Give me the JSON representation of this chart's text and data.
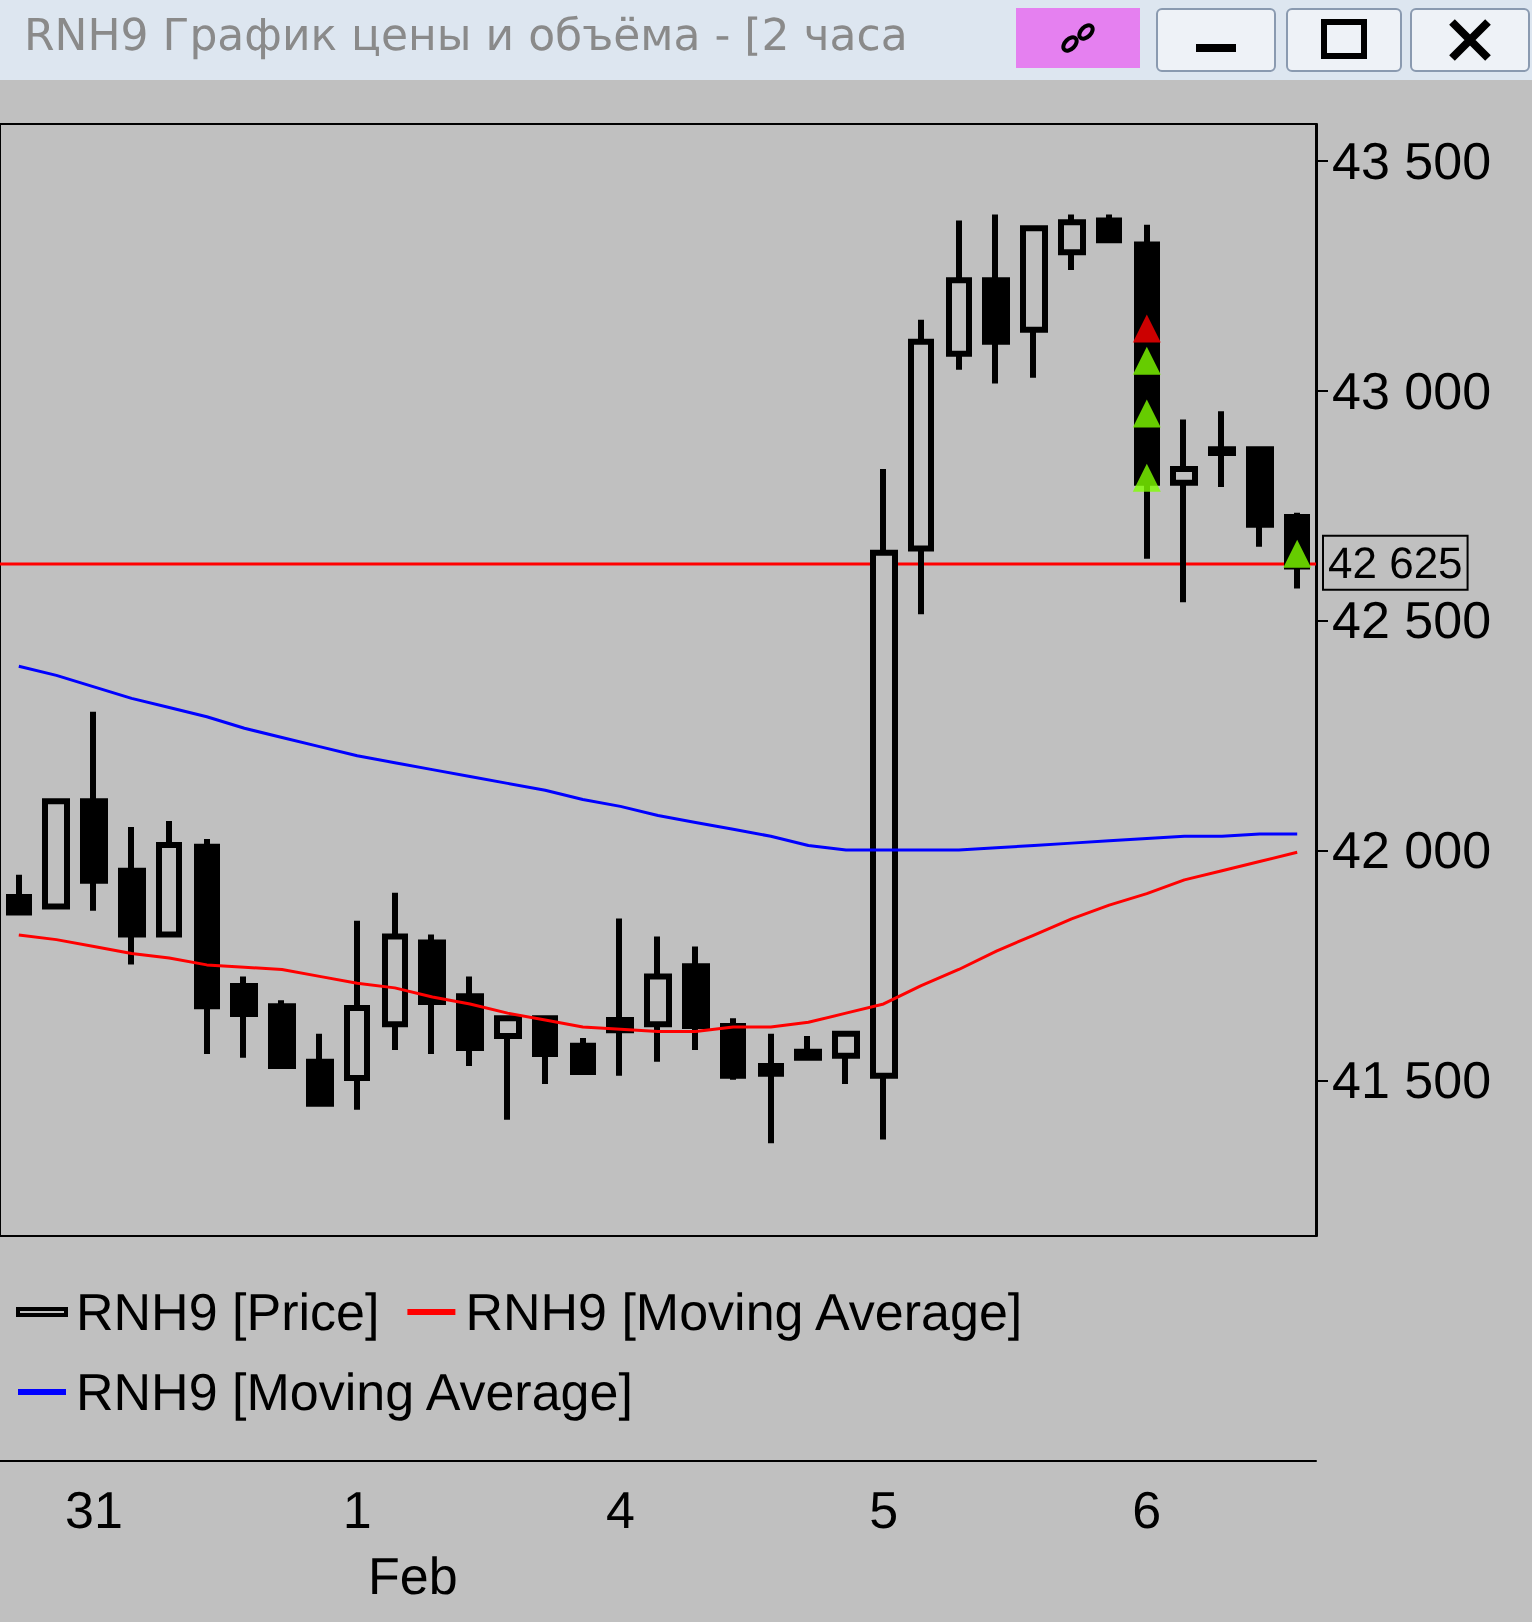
{
  "chart_data": {
    "type": "candlestick",
    "title": "RNH9 График цены и объёма - [2 часа",
    "categories": [
      null,
      null,
      "31",
      null,
      null,
      null,
      null,
      null,
      null,
      "1",
      null,
      null,
      null,
      null,
      null,
      null,
      "4",
      null,
      null,
      null,
      null,
      null,
      null,
      "5",
      null,
      null,
      null,
      null,
      null,
      null,
      "6",
      null,
      null,
      null,
      null
    ],
    "series": [
      {
        "name": "RNH9 [Price]",
        "color": "#000000",
        "ohlc": [
          [
            41898,
            41946,
            41864,
            41864
          ],
          [
            41877,
            42106,
            41877,
            42106
          ],
          [
            42106,
            42301,
            41868,
            41933
          ],
          [
            41955,
            42050,
            41751,
            41816
          ],
          [
            41816,
            42063,
            41816,
            42011
          ],
          [
            42007,
            42024,
            41556,
            41660
          ],
          [
            41704,
            41725,
            41548,
            41643
          ],
          [
            41660,
            41673,
            41530,
            41530
          ],
          [
            41539,
            41600,
            41448,
            41448
          ],
          [
            41504,
            41846,
            41435,
            41656
          ],
          [
            41621,
            41907,
            41565,
            41812
          ],
          [
            41799,
            41816,
            41556,
            41669
          ],
          [
            41682,
            41725,
            41530,
            41569
          ],
          [
            41595,
            41638,
            41413,
            41634
          ],
          [
            41634,
            41638,
            41491,
            41556
          ],
          [
            41574,
            41591,
            41513,
            41517
          ],
          [
            41630,
            41851,
            41509,
            41608
          ],
          [
            41621,
            41812,
            41539,
            41725
          ],
          [
            41747,
            41790,
            41565,
            41617
          ],
          [
            41617,
            41634,
            41500,
            41509
          ],
          [
            41530,
            41600,
            41362,
            41513
          ],
          [
            41561,
            41595,
            41548,
            41548
          ],
          [
            41552,
            41604,
            41491,
            41600
          ],
          [
            41509,
            42829,
            41370,
            42647
          ],
          [
            42656,
            43154,
            42513,
            43106
          ],
          [
            43080,
            43370,
            43045,
            43240
          ],
          [
            43240,
            43383,
            43015,
            43106
          ],
          [
            43132,
            43353,
            43028,
            43353
          ],
          [
            43301,
            43383,
            43262,
            43366
          ],
          [
            43370,
            43383,
            43327,
            43327
          ],
          [
            43318,
            43361,
            42634,
            42799
          ],
          [
            42799,
            42937,
            42539,
            42829
          ],
          [
            42872,
            42955,
            42790,
            42864
          ],
          [
            42872,
            42877,
            42660,
            42708
          ],
          [
            42725,
            42734,
            42569,
            42617
          ]
        ]
      },
      {
        "type": "line",
        "name": "RNH9 [Moving Average]",
        "color": "#ff0000",
        "values": [
          41815,
          41805,
          41790,
          41775,
          41765,
          41750,
          41745,
          41740,
          41725,
          41710,
          41700,
          41680,
          41665,
          41645,
          41630,
          41615,
          41610,
          41605,
          41605,
          41615,
          41615,
          41625,
          41645,
          41665,
          41705,
          41740,
          41780,
          41815,
          41850,
          41880,
          41905,
          41935,
          41955,
          41975,
          41995
        ]
      },
      {
        "type": "line",
        "name": "RNH9 [Moving Average]",
        "color": "#0000ff",
        "values": [
          42400,
          42380,
          42355,
          42330,
          42310,
          42290,
          42265,
          42245,
          42225,
          42205,
          42190,
          42175,
          42160,
          42145,
          42130,
          42110,
          42095,
          42075,
          42060,
          42045,
          42030,
          42010,
          42000,
          42000,
          42000,
          42000,
          42005,
          42010,
          42015,
          42020,
          42025,
          42030,
          42030,
          42035,
          42035
        ]
      },
      {
        "type": "scatter",
        "color": "#80ff00",
        "marker": "triangle",
        "values": [
          null,
          null,
          null,
          null,
          null,
          null,
          null,
          null,
          null,
          null,
          null,
          null,
          null,
          null,
          null,
          null,
          null,
          null,
          null,
          null,
          null,
          null,
          null,
          null,
          null,
          null,
          null,
          null,
          null,
          null,
          43065,
          null,
          null,
          null,
          42645
        ]
      },
      {
        "type": "scatter",
        "color": "#80ff00",
        "marker": "triangle",
        "values": [
          null,
          null,
          null,
          null,
          null,
          null,
          null,
          null,
          null,
          null,
          null,
          null,
          null,
          null,
          null,
          null,
          null,
          null,
          null,
          null,
          null,
          null,
          null,
          null,
          null,
          null,
          null,
          null,
          null,
          null,
          42950,
          null,
          null,
          null,
          null
        ]
      },
      {
        "type": "scatter",
        "color": "#80ff00",
        "marker": "triangle",
        "values": [
          null,
          null,
          null,
          null,
          null,
          null,
          null,
          null,
          null,
          null,
          null,
          null,
          null,
          null,
          null,
          null,
          null,
          null,
          null,
          null,
          null,
          null,
          null,
          null,
          null,
          null,
          null,
          null,
          null,
          null,
          42810,
          null,
          null,
          null,
          null
        ]
      },
      {
        "type": "scatter",
        "color": "#ff0000",
        "marker": "triangle",
        "values": [
          null,
          null,
          null,
          null,
          null,
          null,
          null,
          null,
          null,
          null,
          null,
          null,
          null,
          null,
          null,
          null,
          null,
          null,
          null,
          null,
          null,
          null,
          null,
          null,
          null,
          null,
          null,
          null,
          null,
          null,
          43135,
          null,
          null,
          null,
          null
        ]
      }
    ],
    "ylim": [
      41160,
      43580
    ],
    "yticks": [
      {
        "value": 41500,
        "label": "41 500"
      },
      {
        "value": 42000,
        "label": "42 000"
      },
      {
        "value": 42500,
        "label": "42 500"
      },
      {
        "value": 43000,
        "label": "43 000"
      },
      {
        "value": 43500,
        "label": "43 500"
      }
    ],
    "ref_lines": [
      {
        "axis": "y",
        "value": 42625,
        "label": "42 625",
        "color": "#ff0000"
      }
    ],
    "annotations": [
      "Feb"
    ],
    "legend": "bottom left",
    "grid": false
  }
}
